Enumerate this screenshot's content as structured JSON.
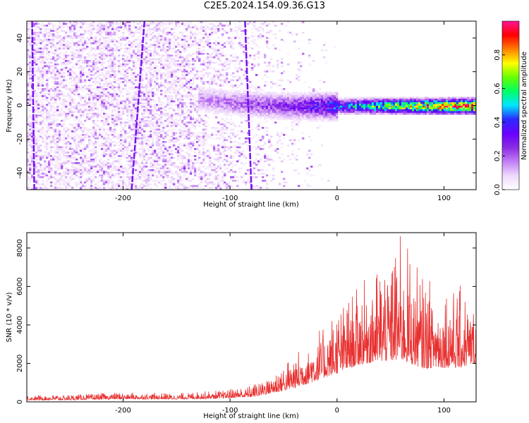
{
  "title": "C2E5.2024.154.09.36.G13",
  "colors": {
    "line": "#e83030",
    "axis": "#000000",
    "colormap": [
      "#ffffff",
      "#efd8fb",
      "#c27ef5",
      "#8a2be2",
      "#6a00ff",
      "#2a2aff",
      "#00e5ff",
      "#00ff66",
      "#66ff00",
      "#ffff00",
      "#ff7f00",
      "#ff0000",
      "#ff1493"
    ]
  },
  "chart_data": [
    {
      "type": "heatmap",
      "title": "C2E5.2024.154.09.36.G13",
      "xlabel": "Height of straight line (km)",
      "ylabel": "Frequency (Hz)",
      "xlim": [
        -290,
        130
      ],
      "ylim": [
        -50,
        50
      ],
      "xticks": [
        -200,
        -100,
        0,
        100
      ],
      "yticks": [
        -40,
        -20,
        0,
        20,
        40
      ],
      "xtick_labels": [
        "-200",
        "-100",
        "0",
        "100"
      ],
      "ytick_labels": [
        "-40",
        "-20",
        "0",
        "20",
        "40"
      ],
      "grid": false,
      "ridge": [
        {
          "x": -150,
          "freq": 6,
          "amp": 0.15
        },
        {
          "x": -100,
          "freq": 2,
          "amp": 0.2
        },
        {
          "x": -50,
          "freq": 0,
          "amp": 0.28
        },
        {
          "x": 0,
          "freq": 0,
          "amp": 0.45
        },
        {
          "x": 50,
          "freq": 0,
          "amp": 0.75
        },
        {
          "x": 100,
          "freq": 0,
          "amp": 0.95
        },
        {
          "x": 130,
          "freq": 0,
          "amp": 1.0
        }
      ],
      "streaks": [
        {
          "x_top": -285,
          "x_bottom": -283
        },
        {
          "x_top": -180,
          "x_bottom": -192
        },
        {
          "x_top": -86,
          "x_bottom": -80
        }
      ],
      "colorbar": {
        "label": "Normalized spectral amplitude",
        "range": [
          0,
          1
        ],
        "ticks": [
          0.0,
          0.2,
          0.4,
          0.6,
          0.8
        ],
        "tick_labels": [
          "0.0",
          "0.2",
          "0.4",
          "0.6",
          "0.8"
        ]
      }
    },
    {
      "type": "line",
      "title": "",
      "xlabel": "Height of straight line (km)",
      "ylabel": "SNR (10 * v/v)",
      "xlim": [
        -290,
        130
      ],
      "ylim": [
        0,
        8800
      ],
      "xticks": [
        -200,
        -100,
        0,
        100
      ],
      "yticks": [
        0,
        2000,
        4000,
        6000,
        8000
      ],
      "xtick_labels": [
        "-200",
        "-100",
        "0",
        "100"
      ],
      "ytick_labels": [
        "0",
        "2000",
        "4000",
        "6000",
        "8000"
      ],
      "grid": false,
      "series": [
        {
          "color": "#e83030",
          "envelope": [
            {
              "x": -290,
              "min": 50,
              "max": 350
            },
            {
              "x": -250,
              "min": 50,
              "max": 380
            },
            {
              "x": -200,
              "min": 80,
              "max": 500
            },
            {
              "x": -150,
              "min": 80,
              "max": 450
            },
            {
              "x": -110,
              "min": 100,
              "max": 600
            },
            {
              "x": -80,
              "min": 150,
              "max": 850
            },
            {
              "x": -60,
              "min": 250,
              "max": 1600
            },
            {
              "x": -40,
              "min": 400,
              "max": 2500
            },
            {
              "x": -20,
              "min": 600,
              "max": 3800
            },
            {
              "x": 0,
              "min": 900,
              "max": 4800
            },
            {
              "x": 20,
              "min": 1200,
              "max": 6000
            },
            {
              "x": 40,
              "min": 1200,
              "max": 7200
            },
            {
              "x": 60,
              "min": 1000,
              "max": 8800
            },
            {
              "x": 80,
              "min": 900,
              "max": 6500
            },
            {
              "x": 100,
              "min": 1000,
              "max": 6200
            },
            {
              "x": 115,
              "min": 1000,
              "max": 6100
            },
            {
              "x": 130,
              "min": 1500,
              "max": 5000
            }
          ]
        }
      ]
    }
  ]
}
